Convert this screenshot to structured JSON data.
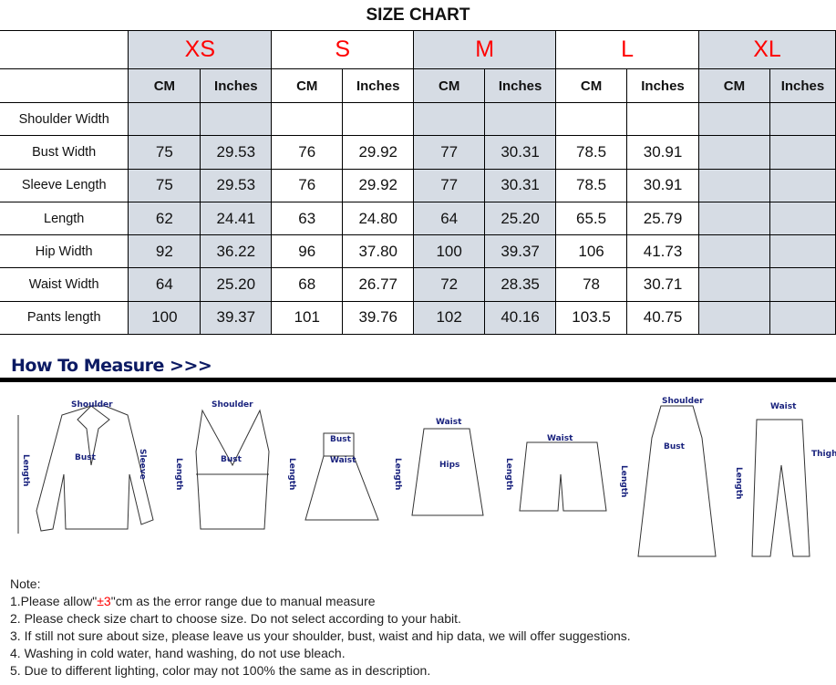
{
  "title": "SIZE CHART",
  "sizes": [
    "XS",
    "S",
    "M",
    "L",
    "XL"
  ],
  "units": [
    "CM",
    "Inches"
  ],
  "rows": [
    {
      "label": "Shoulder Width",
      "values": [
        "",
        "",
        "",
        "",
        "",
        "",
        "",
        "",
        "",
        ""
      ]
    },
    {
      "label": "Bust Width",
      "values": [
        "75",
        "29.53",
        "76",
        "29.92",
        "77",
        "30.31",
        "78.5",
        "30.91",
        "",
        ""
      ]
    },
    {
      "label": "Sleeve Length",
      "values": [
        "75",
        "29.53",
        "76",
        "29.92",
        "77",
        "30.31",
        "78.5",
        "30.91",
        "",
        ""
      ]
    },
    {
      "label": "Length",
      "values": [
        "62",
        "24.41",
        "63",
        "24.80",
        "64",
        "25.20",
        "65.5",
        "25.79",
        "",
        ""
      ]
    },
    {
      "label": "Hip Width",
      "values": [
        "92",
        "36.22",
        "96",
        "37.80",
        "100",
        "39.37",
        "106",
        "41.73",
        "",
        ""
      ]
    },
    {
      "label": "Waist Width",
      "values": [
        "64",
        "25.20",
        "68",
        "26.77",
        "72",
        "28.35",
        "78",
        "30.71",
        "",
        ""
      ]
    },
    {
      "label": "Pants length",
      "values": [
        "100",
        "39.37",
        "101",
        "39.76",
        "102",
        "40.16",
        "103.5",
        "40.75",
        "",
        ""
      ]
    }
  ],
  "how_to_measure": "How To Measure >>>",
  "illustration_labels": {
    "shoulder": "Shoulder",
    "bust": "Bust",
    "sleeve": "Sleeve",
    "length": "Length",
    "waist": "Waist",
    "hips": "Hips",
    "thigh": "Thigh"
  },
  "notes": {
    "heading": "Note:",
    "n1a": "1.Please allow\"",
    "n1b": "±3",
    "n1c": "\"cm as the error range due to manual measure",
    "n2": "2. Please check size chart to choose size. Do not select according to your habit.",
    "n3": "3. If still not sure about size, please leave us your shoulder, bust, waist and hip data, we will offer suggestions.",
    "n4": "4. Washing in cold water, hand washing, do not use bleach.",
    "n5": "5. Due to different lighting, color may not 100% the same as in description."
  },
  "colors": {
    "size_label": "#ff0000",
    "shade": "#d6dce4",
    "heading": "#0b1a63"
  }
}
